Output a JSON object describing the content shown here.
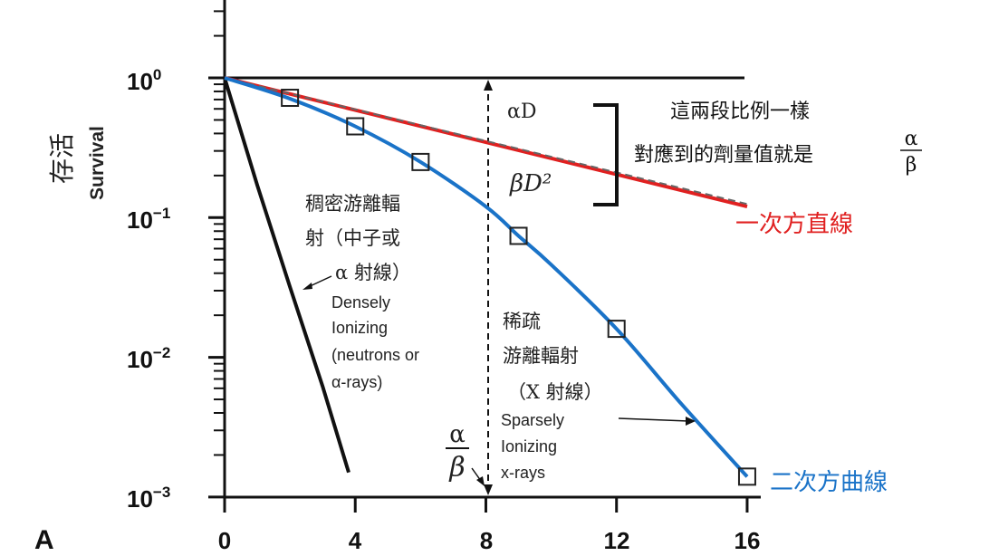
{
  "chart_data": {
    "type": "line",
    "panel_label": "A",
    "ylabel_cn": "存活",
    "ylabel_en": "Survival",
    "yscale": "log",
    "ylim": [
      0.001,
      1
    ],
    "y_ticks": [
      {
        "base": "10",
        "exp": "0",
        "value": 1
      },
      {
        "base": "10",
        "exp": "−1",
        "value": 0.1
      },
      {
        "base": "10",
        "exp": "−2",
        "value": 0.01
      },
      {
        "base": "10",
        "exp": "−3",
        "value": 0.001
      }
    ],
    "xlim": [
      0,
      16
    ],
    "x_ticks": [
      "0",
      "4",
      "8",
      "12",
      "16"
    ],
    "series": [
      {
        "key": "dense",
        "color": "#111111",
        "x": [
          0,
          1,
          2,
          3,
          3.8
        ],
        "y": [
          1,
          0.17,
          0.032,
          0.0062,
          0.0015
        ]
      },
      {
        "key": "sparse",
        "color": "#1a73c8",
        "x": [
          0,
          2,
          4,
          6,
          8,
          9,
          10,
          12,
          14,
          16
        ],
        "y": [
          1,
          0.71,
          0.45,
          0.25,
          0.12,
          0.074,
          0.046,
          0.016,
          0.0046,
          0.0014
        ]
      },
      {
        "key": "linear",
        "color": "#e02020",
        "x": [
          0,
          16
        ],
        "y": [
          1,
          0.12
        ]
      },
      {
        "key": "dashed-alpha-component",
        "color": "#666666",
        "x": [
          0,
          16
        ],
        "y": [
          1,
          0.125
        ]
      }
    ],
    "data_points": {
      "x": [
        2,
        4,
        6,
        9,
        12,
        16
      ],
      "y": [
        0.72,
        0.45,
        0.25,
        0.074,
        0.016,
        0.0014
      ]
    },
    "reference_line_y": 1,
    "alpha_beta_x": 8,
    "annotations": {
      "alpha_d": "αD",
      "beta_d2": "βD²",
      "dense_cn_1": "稠密游離輻",
      "dense_cn_2": "射（中子或",
      "dense_cn_3": "α 射線）",
      "dense_en_1": "Densely",
      "dense_en_2": "Ionizing",
      "dense_en_3": "(neutrons or",
      "dense_en_4": "α-rays)",
      "sparse_cn_1": "稀疏",
      "sparse_cn_2": "游離輻射",
      "sparse_cn_3": "（X 射線）",
      "sparse_en_1": "Sparsely",
      "sparse_en_2": "Ionizing",
      "sparse_en_3": "x-rays",
      "alpha_beta_num": "α",
      "alpha_beta_den": "β",
      "note_line_1": "這兩段比例一樣",
      "note_line_2": "對應到的劑量值就是",
      "note_frac_num": "α",
      "note_frac_den": "β",
      "linear_label": "一次方直線",
      "quadratic_label": "二次方曲線"
    },
    "label_colors": {
      "linear": "#e02020",
      "quadratic": "#1a73c8"
    }
  }
}
